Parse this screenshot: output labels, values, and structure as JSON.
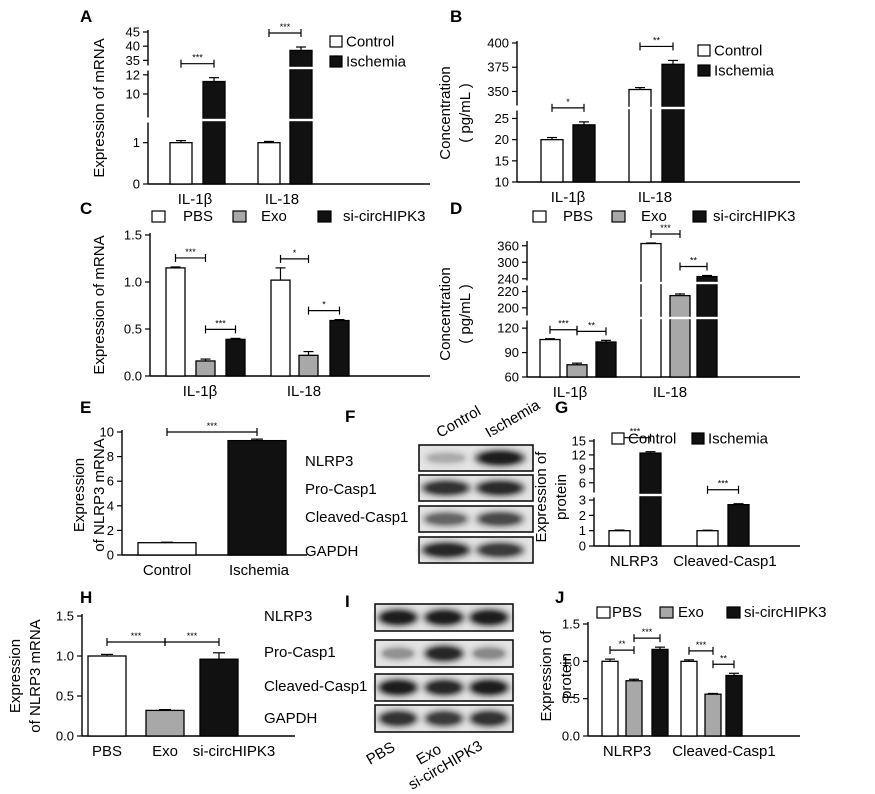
{
  "colors": {
    "white": "#ffffff",
    "gray": "#a8a8a8",
    "black": "#111111"
  },
  "chart_data": [
    {
      "panel": "A",
      "type": "bar",
      "ylabel": "Expression of mRNA",
      "categories": [
        "IL-1β",
        "IL-18"
      ],
      "legend": [
        "Control",
        "Ischemia"
      ],
      "series": [
        {
          "name": "Control",
          "values": [
            1.0,
            1.0
          ],
          "errors": [
            0.05,
            0.03
          ]
        },
        {
          "name": "Ischemia",
          "values": [
            11.3,
            38.5
          ],
          "errors": [
            0.4,
            1.2
          ]
        }
      ],
      "y_segments": [
        {
          "range": [
            0,
            1.5
          ],
          "ticks": [
            0,
            1
          ]
        },
        {
          "range": [
            7.5,
            12.5
          ],
          "ticks": [
            10,
            12
          ]
        },
        {
          "range": [
            33,
            45
          ],
          "ticks": [
            35,
            40,
            45
          ]
        }
      ],
      "significance": [
        {
          "category": 0,
          "label": "***"
        },
        {
          "category": 1,
          "label": "***"
        }
      ]
    },
    {
      "panel": "B",
      "type": "bar",
      "ylabel": "Concentration\n( pg/mL )",
      "categories": [
        "IL-1β",
        "IL-18"
      ],
      "legend": [
        "Control",
        "Ischemia"
      ],
      "series": [
        {
          "name": "Control",
          "values": [
            20,
            352
          ],
          "errors": [
            0.5,
            2
          ]
        },
        {
          "name": "Ischemia",
          "values": [
            23.5,
            378
          ],
          "errors": [
            0.7,
            4
          ]
        }
      ],
      "y_segments": [
        {
          "range": [
            10,
            27
          ],
          "ticks": [
            10,
            15,
            20,
            25
          ]
        },
        {
          "range": [
            335,
            400
          ],
          "ticks": [
            350,
            375,
            400
          ]
        }
      ],
      "significance": [
        {
          "category": 0,
          "label": "*"
        },
        {
          "category": 1,
          "label": "**"
        }
      ]
    },
    {
      "panel": "C",
      "type": "bar",
      "ylabel": "Expression of mRNA",
      "categories": [
        "IL-1β",
        "IL-18"
      ],
      "legend": [
        "PBS",
        "Exo",
        "si-circHIPK3"
      ],
      "series": [
        {
          "name": "PBS",
          "values": [
            1.15,
            1.02
          ],
          "errors": [
            0.01,
            0.13
          ]
        },
        {
          "name": "Exo",
          "values": [
            0.16,
            0.22
          ],
          "errors": [
            0.02,
            0.04
          ]
        },
        {
          "name": "si-circHIPK3",
          "values": [
            0.39,
            0.59
          ],
          "errors": [
            0.01,
            0.01
          ]
        }
      ],
      "y_segments": [
        {
          "range": [
            0,
            1.5
          ],
          "ticks": [
            0.0,
            0.5,
            1.0,
            1.5
          ],
          "tick_labels": [
            "0.0",
            "0.5",
            "1.0",
            "1.5"
          ]
        }
      ],
      "significance": [
        {
          "category": 0,
          "from": 0,
          "to": 1,
          "label": "***",
          "level": 1
        },
        {
          "category": 0,
          "from": 1,
          "to": 2,
          "label": "***",
          "level": 0
        },
        {
          "category": 1,
          "from": 0,
          "to": 1,
          "label": "*",
          "level": 1
        },
        {
          "category": 1,
          "from": 1,
          "to": 2,
          "label": "*",
          "level": 0
        }
      ]
    },
    {
      "panel": "D",
      "type": "bar",
      "ylabel": "Concentration\n( pg/mL )",
      "categories": [
        "IL-1β",
        "IL-18"
      ],
      "legend": [
        "PBS",
        "Exo",
        "si-circHIPK3"
      ],
      "series": [
        {
          "name": "PBS",
          "values": [
            106,
            368
          ],
          "errors": [
            1,
            2
          ]
        },
        {
          "name": "Exo",
          "values": [
            75,
            215
          ],
          "errors": [
            2,
            2
          ]
        },
        {
          "name": "si-circHIPK3",
          "values": [
            103,
            248
          ],
          "errors": [
            2,
            4
          ]
        }
      ],
      "y_segments": [
        {
          "range": [
            60,
            130
          ],
          "ticks": [
            60,
            90,
            120
          ]
        },
        {
          "range": [
            190,
            228
          ],
          "ticks": [
            200,
            220
          ]
        },
        {
          "range": [
            232,
            370
          ],
          "ticks": [
            240,
            300,
            360
          ]
        }
      ],
      "significance": [
        {
          "category": 0,
          "from": 0,
          "to": 1,
          "label": "***",
          "level": 0
        },
        {
          "category": 0,
          "from": 1,
          "to": 2,
          "label": "**",
          "level": 0
        },
        {
          "category": 1,
          "from": 0,
          "to": 1,
          "label": "***",
          "level": 1
        },
        {
          "category": 1,
          "from": 1,
          "to": 2,
          "label": "**",
          "level": 0
        }
      ]
    },
    {
      "panel": "E",
      "type": "bar",
      "ylabel": "Expression\nof NLRP3 mRNA",
      "categories": [
        "Control",
        "Ischemia"
      ],
      "series": [
        {
          "values": [
            1.0,
            9.3
          ],
          "errors": [
            0.04,
            0.12
          ]
        }
      ],
      "y_segments": [
        {
          "range": [
            0,
            10
          ],
          "ticks": [
            0,
            2,
            4,
            6,
            8,
            10
          ]
        }
      ],
      "significance": [
        {
          "from": 0,
          "to": 1,
          "label": "***"
        }
      ]
    },
    {
      "panel": "G",
      "type": "bar",
      "ylabel": "Expression of\nprotein",
      "categories": [
        "NLRP3",
        "Cleaved-Casp1"
      ],
      "legend": [
        "Control",
        "Ischemia"
      ],
      "series": [
        {
          "name": "Control",
          "values": [
            1.0,
            1.0
          ],
          "errors": [
            0.04,
            0.03
          ]
        },
        {
          "name": "Ischemia",
          "values": [
            12.4,
            2.7
          ],
          "errors": [
            0.3,
            0.06
          ]
        }
      ],
      "y_segments": [
        {
          "range": [
            0,
            3.2
          ],
          "ticks": [
            0,
            1,
            2,
            3
          ]
        },
        {
          "range": [
            3.8,
            15
          ],
          "ticks": [
            6,
            9,
            12,
            15
          ]
        }
      ],
      "significance": [
        {
          "category": 0,
          "label": "***"
        },
        {
          "category": 1,
          "label": "***"
        }
      ]
    },
    {
      "panel": "H",
      "type": "bar",
      "ylabel": "Expression\nof NLRP3 mRNA",
      "categories": [
        "PBS",
        "Exo",
        "si-circHIPK3"
      ],
      "series": [
        {
          "values": [
            1.0,
            0.32,
            0.96
          ],
          "errors": [
            0.02,
            0.01,
            0.08
          ]
        }
      ],
      "y_segments": [
        {
          "range": [
            0,
            1.5
          ],
          "ticks": [
            0.0,
            0.5,
            1.0,
            1.5
          ],
          "tick_labels": [
            "0.0",
            "0.5",
            "1.0",
            "1.5"
          ]
        }
      ],
      "significance": [
        {
          "from": 0,
          "to": 1,
          "label": "***"
        },
        {
          "from": 1,
          "to": 2,
          "label": "***"
        }
      ]
    },
    {
      "panel": "J",
      "type": "bar",
      "ylabel": "Expression of\nprotein",
      "categories": [
        "NLRP3",
        "Cleaved-Casp1"
      ],
      "legend": [
        "PBS",
        "Exo",
        "si-circHIPK3"
      ],
      "series": [
        {
          "name": "PBS",
          "values": [
            1.0,
            1.0
          ],
          "errors": [
            0.03,
            0.02
          ]
        },
        {
          "name": "Exo",
          "values": [
            0.74,
            0.56
          ],
          "errors": [
            0.02,
            0.01
          ]
        },
        {
          "name": "si-circHIPK3",
          "values": [
            1.16,
            0.81
          ],
          "errors": [
            0.03,
            0.03
          ]
        }
      ],
      "y_segments": [
        {
          "range": [
            0,
            1.5
          ],
          "ticks": [
            0.0,
            0.5,
            1.0,
            1.5
          ],
          "tick_labels": [
            "0.0",
            "0.5",
            "1.0",
            "1.5"
          ]
        }
      ],
      "significance": [
        {
          "category": 0,
          "from": 0,
          "to": 1,
          "label": "**",
          "level": 0
        },
        {
          "category": 0,
          "from": 1,
          "to": 2,
          "label": "***",
          "level": 0
        },
        {
          "category": 1,
          "from": 0,
          "to": 1,
          "label": "***",
          "level": 0
        },
        {
          "category": 1,
          "from": 1,
          "to": 2,
          "label": "**",
          "level": 0
        }
      ]
    }
  ],
  "blots": {
    "F": {
      "panel": "F",
      "lanes": [
        "Control",
        "Ischemia"
      ],
      "rows": [
        "NLRP3",
        "Pro-Casp1",
        "Cleaved-Casp1",
        "GAPDH"
      ]
    },
    "I": {
      "panel": "I",
      "lanes": [
        "PBS",
        "Exo",
        "si-circHIPK3"
      ],
      "rows": [
        "NLRP3",
        "Pro-Casp1",
        "Cleaved-Casp1",
        "GAPDH"
      ]
    }
  }
}
